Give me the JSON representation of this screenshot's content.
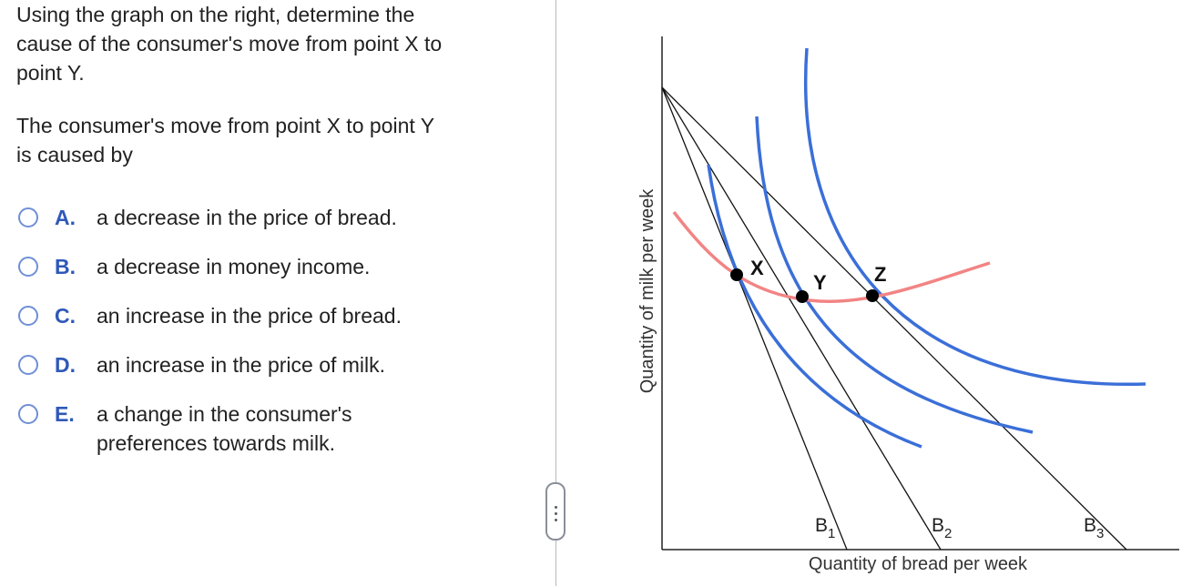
{
  "question": {
    "lines": [
      "Using the graph on the right, determine the",
      "cause of the consumer's move from point X to",
      "point Y."
    ],
    "prompt_lines": [
      "The consumer's move from point X to point Y",
      "is caused by"
    ]
  },
  "options": [
    {
      "letter": "A.",
      "lines": [
        "a decrease in the price of bread."
      ]
    },
    {
      "letter": "B.",
      "lines": [
        "a decrease in money income."
      ]
    },
    {
      "letter": "C.",
      "lines": [
        "an increase in the price of bread."
      ]
    },
    {
      "letter": "D.",
      "lines": [
        "an increase in the price of milk."
      ]
    },
    {
      "letter": "E.",
      "lines": [
        "a change in the consumer's",
        "preferences towards milk."
      ]
    }
  ],
  "graph": {
    "x_axis_label": "Quantity of bread per week",
    "y_axis_label": "Quantity of milk per week",
    "budget_lines": [
      {
        "label": "B",
        "sub": "1"
      },
      {
        "label": "B",
        "sub": "2"
      },
      {
        "label": "B",
        "sub": "3"
      }
    ],
    "points": [
      "X",
      "Y",
      "Z"
    ],
    "colors": {
      "indifference_curve": "#3b6fd8",
      "price_consumption_curve": "#f28484",
      "budget_line": "#111111",
      "option_letter": "#2f59b8",
      "radio_border": "#6f8fd6"
    }
  }
}
